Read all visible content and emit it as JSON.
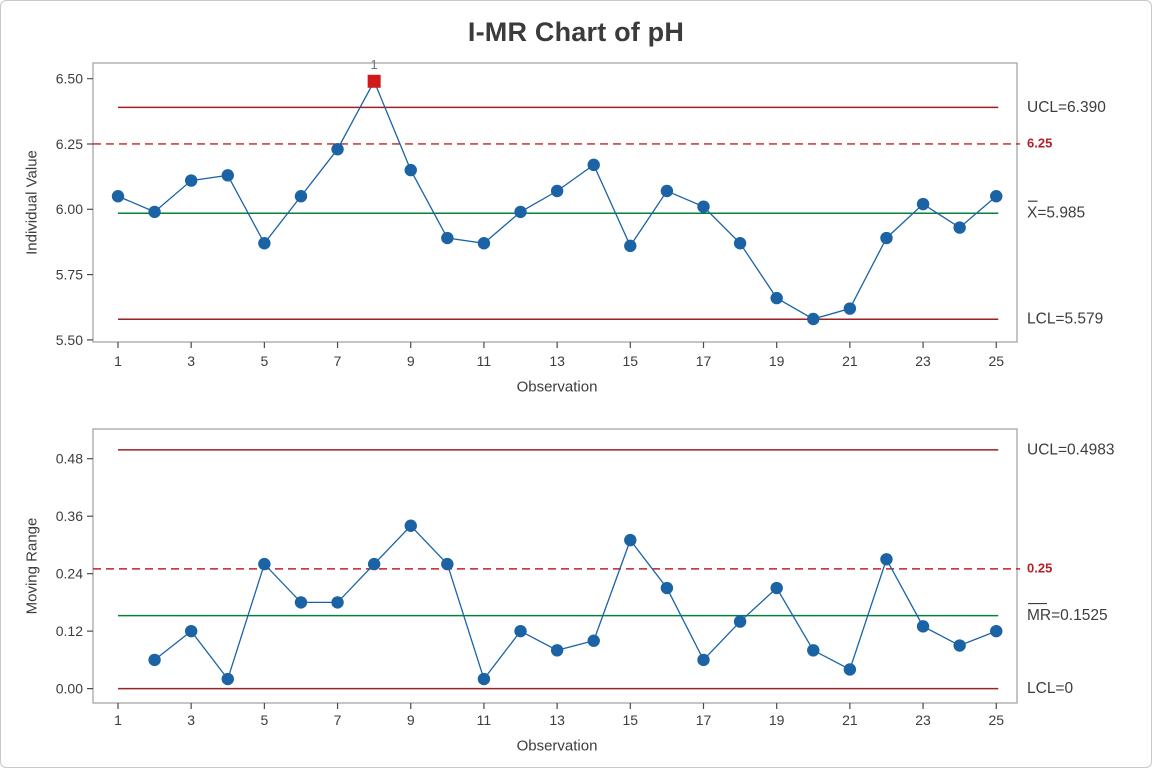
{
  "header": {
    "title": "I-MR Chart of pH"
  },
  "colors": {
    "series_blue": "#1b63a5",
    "center_line_green": "#058139",
    "control_limit_dark_red": "#9a2224",
    "spec_line_red": "#c42127",
    "spec_label_red": "#b42025",
    "out_of_control_red": "#d11919",
    "flag_gray": "#757575",
    "frame_gray": "#a6a6a6",
    "text_dark": "#3d3d3d"
  },
  "chart_data": [
    {
      "type": "line",
      "name": "individuals-chart",
      "ylabel": "Individual Value",
      "xlabel": "Observation",
      "x": [
        1,
        2,
        3,
        4,
        5,
        6,
        7,
        8,
        9,
        10,
        11,
        12,
        13,
        14,
        15,
        16,
        17,
        18,
        19,
        20,
        21,
        22,
        23,
        24,
        25
      ],
      "values": [
        6.05,
        5.99,
        6.11,
        6.13,
        5.87,
        6.05,
        6.23,
        6.49,
        6.15,
        5.89,
        5.87,
        5.99,
        6.07,
        6.17,
        5.86,
        6.07,
        6.01,
        5.87,
        5.66,
        5.58,
        5.62,
        5.89,
        6.02,
        5.93,
        6.05
      ],
      "center_line": 5.985,
      "ucl": 6.39,
      "lcl": 5.579,
      "spec_limit": 6.25,
      "ylim": [
        5.492,
        6.56
      ],
      "x_range": [
        0.317,
        25.567
      ],
      "ytick_values": [
        6.5,
        6.25,
        6.0,
        5.75,
        5.5
      ],
      "ytick_labels": [
        "6.50",
        "6.25",
        "6.00",
        "5.75",
        "5.50"
      ],
      "xtick_values": [
        1,
        3,
        5,
        7,
        9,
        11,
        13,
        15,
        17,
        19,
        21,
        23,
        25
      ],
      "annotations": {
        "ucl_label": "UCL=6.390",
        "center_label": "X=5.985",
        "center_overbar_chars": 1,
        "lcl_label": "LCL=5.579",
        "spec_label": "6.25"
      },
      "out_of_control_points": [
        {
          "x": 8,
          "flag": "1"
        }
      ],
      "legend": "none",
      "grid": "off"
    },
    {
      "type": "line",
      "name": "moving-range-chart",
      "ylabel": "Moving Range",
      "xlabel": "Observation",
      "x": [
        2,
        3,
        4,
        5,
        6,
        7,
        8,
        9,
        10,
        11,
        12,
        13,
        14,
        15,
        16,
        17,
        18,
        19,
        20,
        21,
        22,
        23,
        24,
        25
      ],
      "values": [
        0.06,
        0.12,
        0.02,
        0.26,
        0.18,
        0.18,
        0.26,
        0.34,
        0.26,
        0.02,
        0.12,
        0.08,
        0.1,
        0.31,
        0.21,
        0.06,
        0.14,
        0.21,
        0.08,
        0.04,
        0.27,
        0.13,
        0.09,
        0.12
      ],
      "center_line": 0.1525,
      "ucl": 0.4983,
      "lcl": 0,
      "spec_limit": 0.25,
      "ylim": [
        -0.03,
        0.542
      ],
      "x_range": [
        0.317,
        25.567
      ],
      "ytick_values": [
        0.48,
        0.36,
        0.24,
        0.12,
        0.0
      ],
      "ytick_labels": [
        "0.48",
        "0.36",
        "0.24",
        "0.12",
        "0.00"
      ],
      "xtick_values": [
        1,
        3,
        5,
        7,
        9,
        11,
        13,
        15,
        17,
        19,
        21,
        23,
        25
      ],
      "annotations": {
        "ucl_label": "UCL=0.4983",
        "center_label": "MR=0.1525",
        "center_overbar_chars": 2,
        "lcl_label": "LCL=0",
        "spec_label": "0.25"
      },
      "out_of_control_points": [],
      "legend": "none",
      "grid": "off"
    }
  ]
}
